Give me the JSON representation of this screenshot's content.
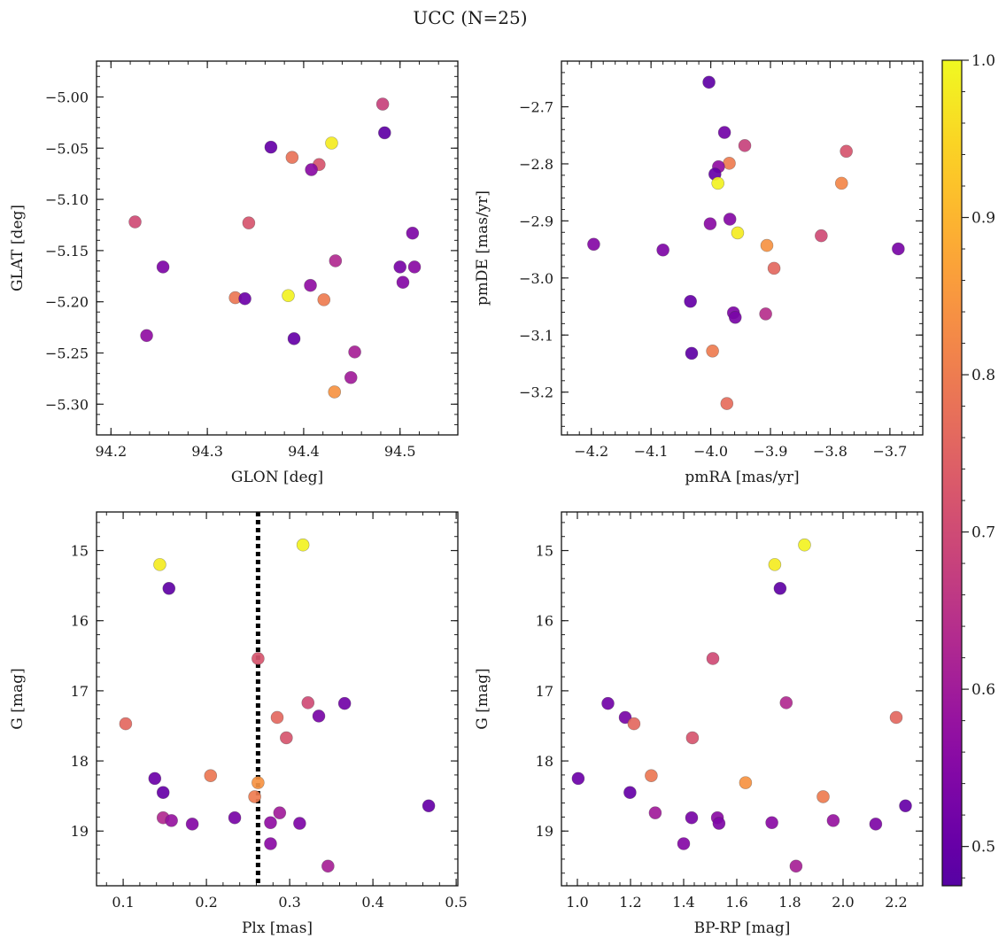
{
  "figure": {
    "title": "UCC (N=25)"
  },
  "colorbar": {
    "range": [
      0.475,
      1.0
    ],
    "ticks": [
      0.5,
      0.6,
      0.7,
      0.8,
      0.9,
      1.0
    ],
    "tick_labels": [
      "0.5",
      "0.6",
      "0.7",
      "0.8",
      "0.9",
      "1.0"
    ],
    "colormap": "plasma"
  },
  "chart_data": [
    {
      "type": "scatter",
      "xlabel": "GLON [deg]",
      "ylabel": "GLAT [deg]",
      "xlim": [
        94.185,
        94.56
      ],
      "ylim": [
        -5.33,
        -4.965
      ],
      "xticks": [
        94.2,
        94.3,
        94.4,
        94.5
      ],
      "xtick_labels": [
        "94.2",
        "94.3",
        "94.4",
        "94.5"
      ],
      "yticks": [
        -5.0,
        -5.05,
        -5.1,
        -5.15,
        -5.2,
        -5.25,
        -5.3
      ],
      "ytick_labels": [
        "−5.00",
        "−5.05",
        "−5.10",
        "−5.15",
        "−5.20",
        "−5.25",
        "−5.30"
      ],
      "x": [
        94.482,
        94.484,
        94.366,
        94.429,
        94.388,
        94.416,
        94.408,
        94.225,
        94.343,
        94.513,
        94.254,
        94.433,
        94.5,
        94.515,
        94.503,
        94.407,
        94.329,
        94.339,
        94.384,
        94.421,
        94.237,
        94.39,
        94.453,
        94.449,
        94.432
      ],
      "y": [
        -5.007,
        -5.035,
        -5.049,
        -5.045,
        -5.059,
        -5.066,
        -5.071,
        -5.122,
        -5.123,
        -5.133,
        -5.166,
        -5.16,
        -5.166,
        -5.166,
        -5.181,
        -5.184,
        -5.196,
        -5.197,
        -5.194,
        -5.198,
        -5.233,
        -5.236,
        -5.249,
        -5.274,
        -5.288
      ],
      "c": [
        0.68,
        0.49,
        0.5,
        0.98,
        0.78,
        0.72,
        0.56,
        0.7,
        0.72,
        0.54,
        0.54,
        0.63,
        0.53,
        0.56,
        0.55,
        0.57,
        0.79,
        0.51,
        0.99,
        0.8,
        0.57,
        0.5,
        0.61,
        0.6,
        0.84
      ]
    },
    {
      "type": "scatter",
      "xlabel": "pmRA [mas/yr]",
      "ylabel": "pmDE [mas/yr]",
      "xlim": [
        -4.25,
        -3.645
      ],
      "ylim": [
        -3.275,
        -2.62
      ],
      "xticks": [
        -4.2,
        -4.1,
        -4.0,
        -3.9,
        -3.8,
        -3.7
      ],
      "xtick_labels": [
        "−4.2",
        "−4.1",
        "−4.0",
        "−3.9",
        "−3.8",
        "−3.7"
      ],
      "yticks": [
        -2.7,
        -2.8,
        -2.9,
        -3.0,
        -3.1,
        -3.2
      ],
      "ytick_labels": [
        "−2.7",
        "−2.8",
        "−2.9",
        "−3.0",
        "−3.1",
        "−3.2"
      ],
      "x": [
        -4.003,
        -3.977,
        -3.943,
        -3.773,
        -3.969,
        -3.987,
        -3.993,
        -3.988,
        -3.781,
        -3.968,
        -4.001,
        -3.955,
        -3.815,
        -4.196,
        -3.906,
        -4.08,
        -3.686,
        -3.894,
        -4.034,
        -3.962,
        -3.908,
        -3.959,
        -4.032,
        -3.997,
        -3.973
      ],
      "y": [
        -2.657,
        -2.745,
        -2.768,
        -2.778,
        -2.799,
        -2.805,
        -2.818,
        -2.834,
        -2.834,
        -2.897,
        -2.905,
        -2.921,
        -2.926,
        -2.941,
        -2.943,
        -2.951,
        -2.949,
        -2.983,
        -3.041,
        -3.061,
        -3.063,
        -3.069,
        -3.132,
        -3.128,
        -3.22
      ],
      "c": [
        0.49,
        0.52,
        0.68,
        0.72,
        0.8,
        0.57,
        0.5,
        0.99,
        0.82,
        0.55,
        0.56,
        0.98,
        0.7,
        0.55,
        0.84,
        0.54,
        0.53,
        0.76,
        0.5,
        0.54,
        0.64,
        0.53,
        0.49,
        0.8,
        0.77
      ]
    },
    {
      "type": "scatter",
      "xlabel": "Plx [mas]",
      "ylabel": "G [mag]",
      "xlim": [
        0.068,
        0.502
      ],
      "ylim": [
        19.78,
        14.45
      ],
      "y_inverted": true,
      "xticks": [
        0.1,
        0.2,
        0.3,
        0.4,
        0.5
      ],
      "xtick_labels": [
        "0.1",
        "0.2",
        "0.3",
        "0.4",
        "0.5"
      ],
      "yticks": [
        15,
        16,
        17,
        18,
        19
      ],
      "ytick_labels": [
        "15",
        "16",
        "17",
        "18",
        "19"
      ],
      "vline": {
        "x": 0.262,
        "style": "dotted",
        "color": "#000000"
      },
      "x": [
        0.316,
        0.144,
        0.155,
        0.262,
        0.366,
        0.322,
        0.285,
        0.335,
        0.103,
        0.296,
        0.205,
        0.262,
        0.138,
        0.148,
        0.258,
        0.467,
        0.288,
        0.148,
        0.158,
        0.183,
        0.234,
        0.277,
        0.312,
        0.277,
        0.346
      ],
      "y": [
        14.92,
        15.2,
        15.54,
        16.54,
        17.18,
        17.17,
        17.38,
        17.36,
        17.47,
        17.67,
        18.21,
        18.31,
        18.25,
        18.45,
        18.51,
        18.64,
        18.74,
        18.81,
        18.85,
        18.9,
        18.81,
        18.88,
        18.89,
        19.18,
        19.5
      ],
      "c": [
        0.99,
        0.98,
        0.49,
        0.72,
        0.52,
        0.7,
        0.76,
        0.53,
        0.76,
        0.72,
        0.79,
        0.84,
        0.51,
        0.5,
        0.8,
        0.5,
        0.6,
        0.63,
        0.58,
        0.55,
        0.53,
        0.57,
        0.54,
        0.56,
        0.61
      ]
    },
    {
      "type": "scatter",
      "xlabel": "BP-RP [mag]",
      "ylabel": "G [mag]",
      "xlim": [
        0.94,
        2.3
      ],
      "ylim": [
        19.78,
        14.45
      ],
      "y_inverted": true,
      "xticks": [
        1.0,
        1.2,
        1.4,
        1.6,
        1.8,
        2.0,
        2.2
      ],
      "xtick_labels": [
        "1.0",
        "1.2",
        "1.4",
        "1.6",
        "1.8",
        "2.0",
        "2.2"
      ],
      "yticks": [
        15,
        16,
        17,
        18,
        19
      ],
      "ytick_labels": [
        "15",
        "16",
        "17",
        "18",
        "19"
      ],
      "x": [
        1.855,
        1.743,
        1.763,
        1.51,
        1.115,
        1.786,
        1.18,
        1.213,
        2.2,
        1.433,
        1.278,
        1.633,
        1.003,
        1.198,
        1.925,
        2.235,
        1.293,
        1.43,
        1.527,
        1.963,
        1.732,
        1.533,
        2.123,
        1.4,
        1.823
      ],
      "y": [
        14.92,
        15.2,
        15.54,
        16.54,
        17.18,
        17.17,
        17.38,
        17.47,
        17.38,
        17.67,
        18.21,
        18.31,
        18.25,
        18.45,
        18.51,
        18.64,
        18.74,
        18.81,
        18.81,
        18.85,
        18.88,
        18.89,
        18.9,
        19.18,
        19.5
      ],
      "c": [
        0.99,
        0.98,
        0.49,
        0.7,
        0.52,
        0.63,
        0.53,
        0.76,
        0.76,
        0.72,
        0.79,
        0.84,
        0.51,
        0.5,
        0.8,
        0.5,
        0.6,
        0.53,
        0.56,
        0.58,
        0.56,
        0.54,
        0.54,
        0.55,
        0.61
      ]
    }
  ]
}
